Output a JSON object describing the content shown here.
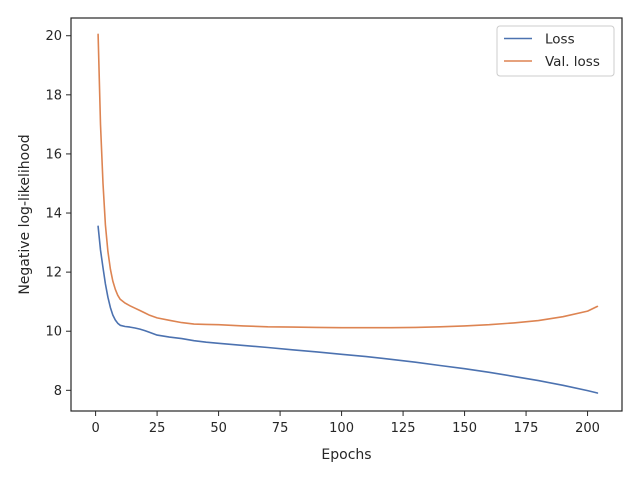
{
  "chart_data": {
    "type": "line",
    "title": "",
    "xlabel": "Epochs",
    "ylabel": "Negative log-likelihood",
    "xlim": [
      -10,
      214
    ],
    "ylim": [
      7.3,
      20.6
    ],
    "xticks": [
      0,
      25,
      50,
      75,
      100,
      125,
      150,
      175,
      200
    ],
    "yticks": [
      8,
      10,
      12,
      14,
      16,
      18,
      20
    ],
    "grid": false,
    "legend_position": "top-right",
    "series": [
      {
        "name": "Loss",
        "color": "#4c72b0",
        "x": [
          1,
          2,
          3,
          4,
          5,
          6,
          7,
          8,
          9,
          10,
          12,
          14,
          16,
          18,
          20,
          22,
          25,
          30,
          35,
          40,
          45,
          50,
          60,
          70,
          80,
          90,
          100,
          110,
          120,
          130,
          140,
          150,
          160,
          170,
          180,
          190,
          200,
          204
        ],
        "y": [
          13.55,
          12.75,
          12.15,
          11.6,
          11.15,
          10.8,
          10.55,
          10.38,
          10.27,
          10.2,
          10.16,
          10.14,
          10.11,
          10.07,
          10.02,
          9.96,
          9.87,
          9.8,
          9.75,
          9.68,
          9.63,
          9.59,
          9.52,
          9.45,
          9.37,
          9.3,
          9.22,
          9.14,
          9.05,
          8.95,
          8.84,
          8.73,
          8.61,
          8.47,
          8.33,
          8.17,
          7.99,
          7.91
        ]
      },
      {
        "name": "Val. loss",
        "color": "#dd8452",
        "x": [
          1,
          2,
          3,
          4,
          5,
          6,
          7,
          8,
          9,
          10,
          12,
          14,
          16,
          18,
          20,
          22,
          25,
          30,
          35,
          40,
          45,
          50,
          60,
          70,
          80,
          90,
          100,
          110,
          120,
          130,
          140,
          150,
          160,
          170,
          180,
          190,
          200,
          204
        ],
        "y": [
          20.05,
          17.0,
          15.0,
          13.6,
          12.7,
          12.1,
          11.7,
          11.42,
          11.22,
          11.08,
          10.95,
          10.86,
          10.78,
          10.7,
          10.62,
          10.54,
          10.45,
          10.37,
          10.29,
          10.24,
          10.23,
          10.22,
          10.18,
          10.15,
          10.14,
          10.13,
          10.12,
          10.12,
          10.12,
          10.13,
          10.15,
          10.18,
          10.22,
          10.28,
          10.36,
          10.49,
          10.68,
          10.84
        ]
      }
    ]
  }
}
